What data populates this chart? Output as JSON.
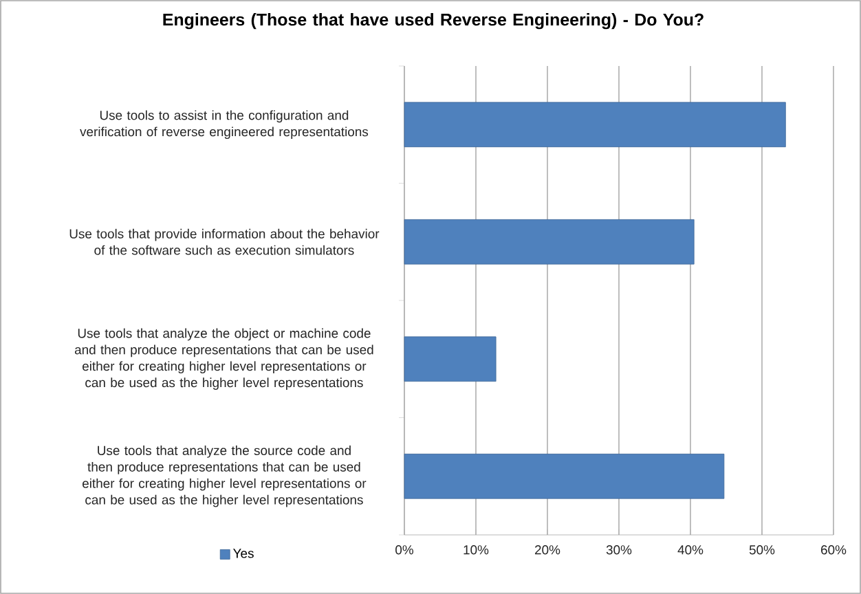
{
  "chart_data": {
    "type": "bar",
    "orientation": "horizontal",
    "title": "Engineers (Those that have used Reverse Engineering) - Do You?",
    "categories": [
      "Use tools to assist in the configuration and verification of reverse engineered representations",
      "Use tools that provide information about the behavior of the software such as execution simulators",
      "Use tools that analyze the object or machine code and then produce representations that can be used either for creating higher level representations or can be used as the higher level representations",
      "Use tools that analyze the source code and then produce representations that can be used either for creating higher level representations or can be used as the higher level representations"
    ],
    "series": [
      {
        "name": "Yes",
        "color": "#4f81bd",
        "values": [
          53.3,
          40.5,
          12.8,
          44.7
        ]
      }
    ],
    "xlim": [
      0,
      60
    ],
    "xticks": [
      {
        "value": 0,
        "label": "0%"
      },
      {
        "value": 10,
        "label": "10%"
      },
      {
        "value": 20,
        "label": "20%"
      },
      {
        "value": 30,
        "label": "30%"
      },
      {
        "value": 40,
        "label": "40%"
      },
      {
        "value": 50,
        "label": "50%"
      },
      {
        "value": 60,
        "label": "60%"
      }
    ],
    "grid": "x",
    "legend": "bottom left"
  }
}
